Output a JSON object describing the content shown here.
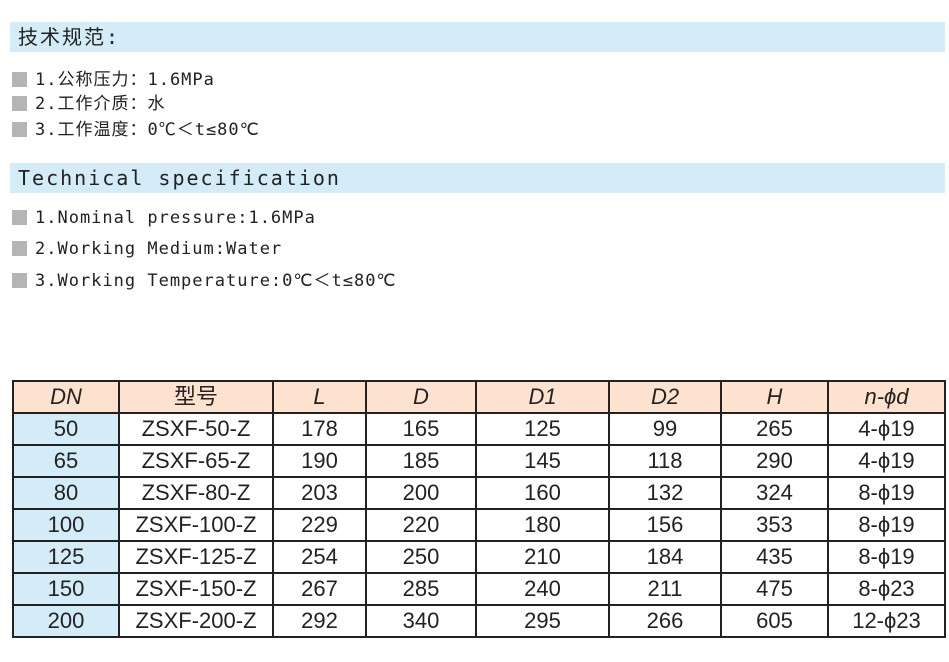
{
  "sections": [
    {
      "title": "技术规范:",
      "items": [
        "1.公称压力：1.6MPa",
        "2.工作介质：水",
        "3.工作温度：0℃＜t≤80℃"
      ]
    },
    {
      "title": "Technical specification",
      "items": [
        "1.Nominal pressure:1.6MPa",
        "2.Working Medium:Water",
        "3.Working Temperature:0℃＜t≤80℃"
      ]
    }
  ],
  "table": {
    "header": [
      "DN",
      "型号",
      "L",
      "D",
      "D1",
      "D2",
      "H",
      "n-ϕd"
    ],
    "rows": [
      [
        "50",
        "ZSXF-50-Z",
        "178",
        "165",
        "125",
        "99",
        "265",
        "4-ϕ19"
      ],
      [
        "65",
        "ZSXF-65-Z",
        "190",
        "185",
        "145",
        "118",
        "290",
        "4-ϕ19"
      ],
      [
        "80",
        "ZSXF-80-Z",
        "203",
        "200",
        "160",
        "132",
        "324",
        "8-ϕ19"
      ],
      [
        "100",
        "ZSXF-100-Z",
        "229",
        "220",
        "180",
        "156",
        "353",
        "8-ϕ19"
      ],
      [
        "125",
        "ZSXF-125-Z",
        "254",
        "250",
        "210",
        "184",
        "435",
        "8-ϕ19"
      ],
      [
        "150",
        "ZSXF-150-Z",
        "267",
        "285",
        "240",
        "211",
        "475",
        "8-ϕ23"
      ],
      [
        "200",
        "ZSXF-200-Z",
        "292",
        "340",
        "295",
        "266",
        "605",
        "12-ϕ23"
      ]
    ]
  }
}
